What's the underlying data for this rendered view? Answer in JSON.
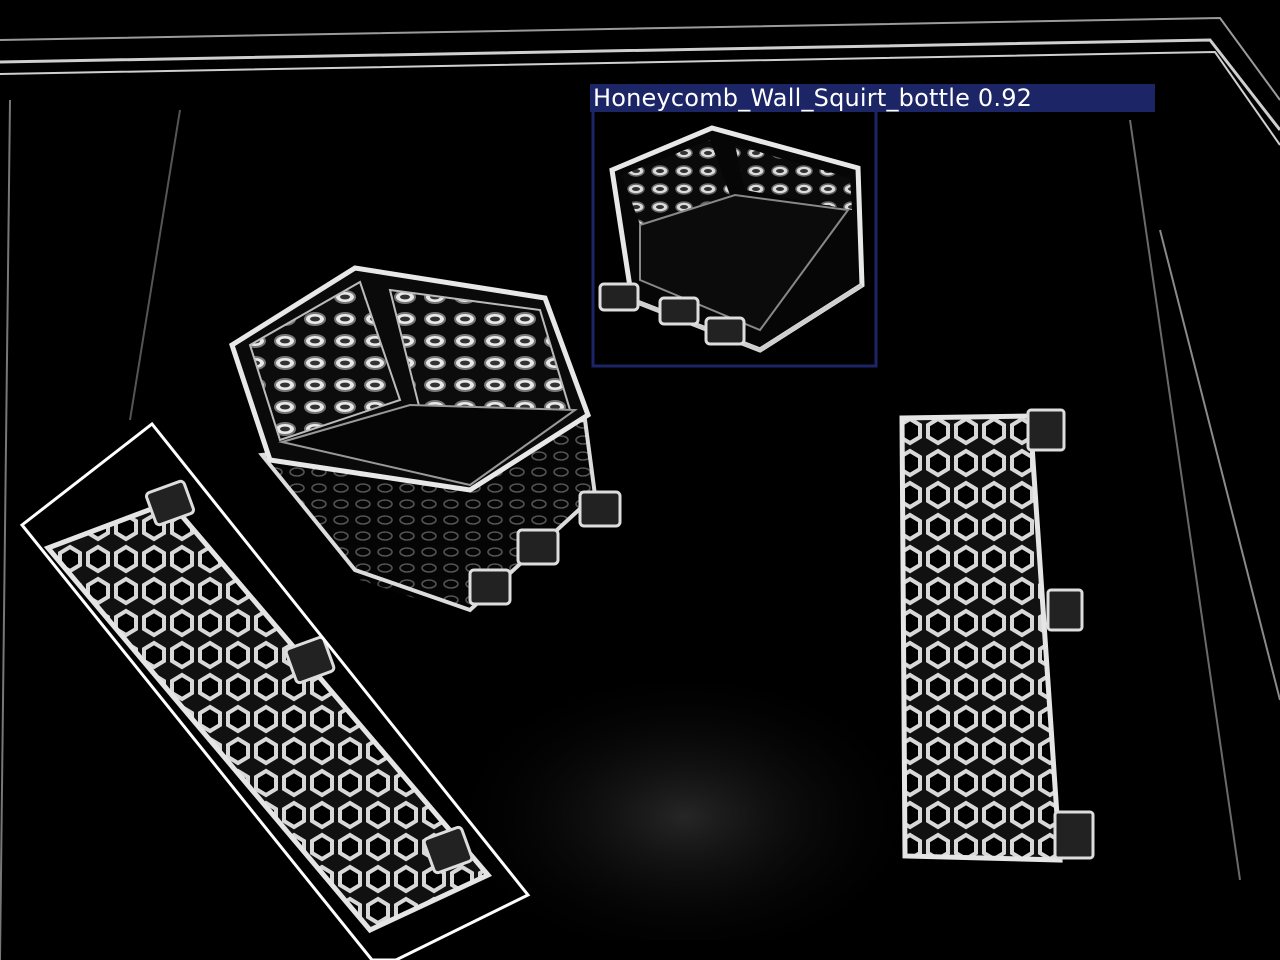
{
  "image": {
    "description_kind": "edge-filtered photo of 3D printed honeycomb parts with object detection overlay"
  },
  "detections": [
    {
      "class_name": "Honeycomb_Wall_Squirt_bottle",
      "score": "0.92",
      "color": "#1c2566"
    },
    {
      "class_name": "",
      "score": "",
      "color": "#ffffff"
    }
  ],
  "colors": {
    "background": "#000000",
    "edges": "#e6e6e6",
    "label_bg": "#1c2566",
    "label_text": "#ffffff"
  }
}
